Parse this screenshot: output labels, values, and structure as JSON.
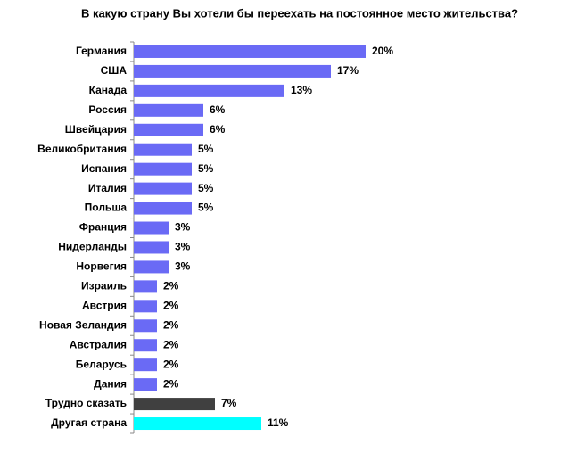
{
  "chart_data": {
    "type": "bar",
    "orientation": "horizontal",
    "title": "В какую страну Вы хотели бы переехать на постоянное место жительства?",
    "categories": [
      "Германия",
      "США",
      "Канада",
      "Россия",
      "Швейцария",
      "Великобритания",
      "Испания",
      "Италия",
      "Польша",
      "Франция",
      "Нидерланды",
      "Норвегия",
      "Израиль",
      "Австрия",
      "Новая Зеландия",
      "Австралия",
      "Беларусь",
      "Дания",
      "Трудно сказать",
      "Другая страна"
    ],
    "values": [
      20,
      17,
      13,
      6,
      6,
      5,
      5,
      5,
      5,
      3,
      3,
      3,
      2,
      2,
      2,
      2,
      2,
      2,
      7,
      11
    ],
    "value_labels": [
      "20%",
      "17%",
      "13%",
      "6%",
      "6%",
      "5%",
      "5%",
      "5%",
      "5%",
      "3%",
      "3%",
      "3%",
      "2%",
      "2%",
      "2%",
      "2%",
      "2%",
      "2%",
      "7%",
      "11%"
    ],
    "colors": [
      "#6a6af5",
      "#6a6af5",
      "#6a6af5",
      "#6a6af5",
      "#6a6af5",
      "#6a6af5",
      "#6a6af5",
      "#6a6af5",
      "#6a6af5",
      "#6a6af5",
      "#6a6af5",
      "#6a6af5",
      "#6a6af5",
      "#6a6af5",
      "#6a6af5",
      "#6a6af5",
      "#6a6af5",
      "#6a6af5",
      "#404040",
      "#00ffff"
    ]
  }
}
